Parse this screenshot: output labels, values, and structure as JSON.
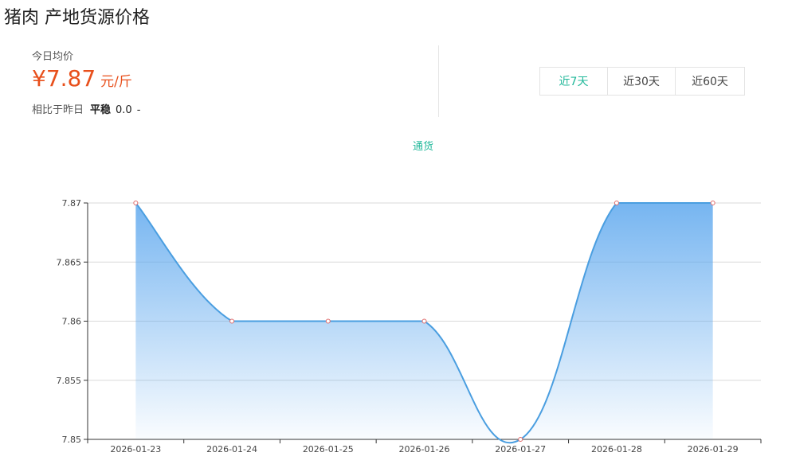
{
  "header": {
    "title": "猪肉 产地货源价格"
  },
  "summary": {
    "avg_label": "今日均价",
    "price": "¥7.87",
    "unit": "元/斤",
    "compare_label": "相比于昨日",
    "compare_status": "平稳",
    "compare_value": "0.0",
    "compare_dash": "-"
  },
  "tabs": [
    {
      "label": "近7天",
      "active": true
    },
    {
      "label": "近30天",
      "active": false
    },
    {
      "label": "近60天",
      "active": false
    }
  ],
  "colors": {
    "accent": "#21b89a",
    "price": "#e8501c",
    "line": "#4a9ee0",
    "fill": "#7db8f0"
  },
  "chart_data": {
    "type": "area",
    "categories": [
      "2026-01-23",
      "2026-01-24",
      "2026-01-25",
      "2026-01-26",
      "2026-01-27",
      "2026-01-28",
      "2026-01-29"
    ],
    "series": [
      {
        "name": "通货",
        "values": [
          7.87,
          7.86,
          7.86,
          7.86,
          7.85,
          7.87,
          7.87
        ]
      }
    ],
    "ylim": [
      7.85,
      7.87
    ],
    "yticks": [
      "7.85",
      "7.855",
      "7.86",
      "7.865",
      "7.87"
    ],
    "grid": true,
    "legend": "top-center"
  }
}
